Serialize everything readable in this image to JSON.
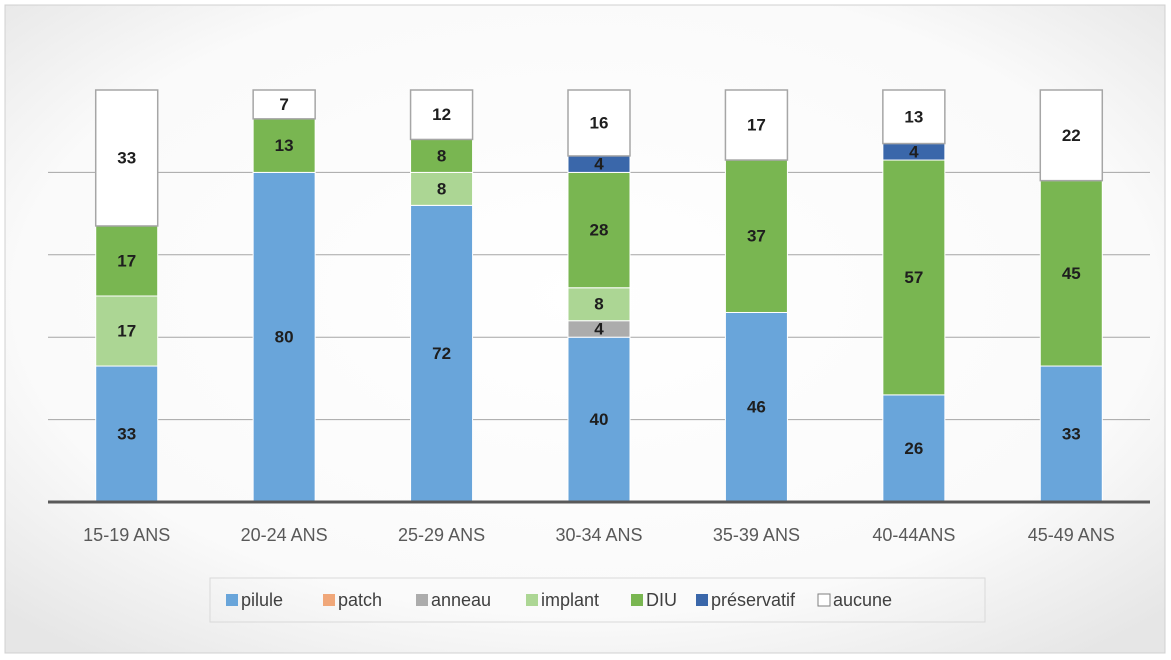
{
  "chart_data": {
    "type": "stacked-bar",
    "categories": [
      "15-19 ANS",
      "20-24 ANS",
      "25-29 ANS",
      "30-34 ANS",
      "35-39 ANS",
      "40-44ANS",
      "45-49 ANS"
    ],
    "series": [
      {
        "name": "pilule",
        "color": "#69a5da",
        "values": [
          33,
          80,
          72,
          40,
          46,
          26,
          33
        ]
      },
      {
        "name": "patch",
        "color": "#f0a779",
        "values": [
          0,
          0,
          0,
          0,
          0,
          0,
          0
        ]
      },
      {
        "name": "anneau",
        "color": "#acacac",
        "values": [
          0,
          0,
          0,
          4,
          0,
          0,
          0
        ]
      },
      {
        "name": "implant",
        "color": "#acd694",
        "values": [
          17,
          0,
          8,
          8,
          0,
          0,
          0
        ]
      },
      {
        "name": "DIU",
        "color": "#79b651",
        "values": [
          17,
          13,
          8,
          28,
          37,
          57,
          45
        ]
      },
      {
        "name": "préservatif",
        "color": "#3a67aa",
        "values": [
          0,
          0,
          0,
          4,
          0,
          4,
          0
        ]
      },
      {
        "name": "aucune",
        "color": "#ffffff",
        "values": [
          33,
          7,
          12,
          16,
          17,
          13,
          22
        ]
      }
    ],
    "ylim": [
      0,
      100
    ],
    "yticks": [
      20,
      40,
      60,
      80
    ],
    "grid": true,
    "legend": "bottom"
  }
}
